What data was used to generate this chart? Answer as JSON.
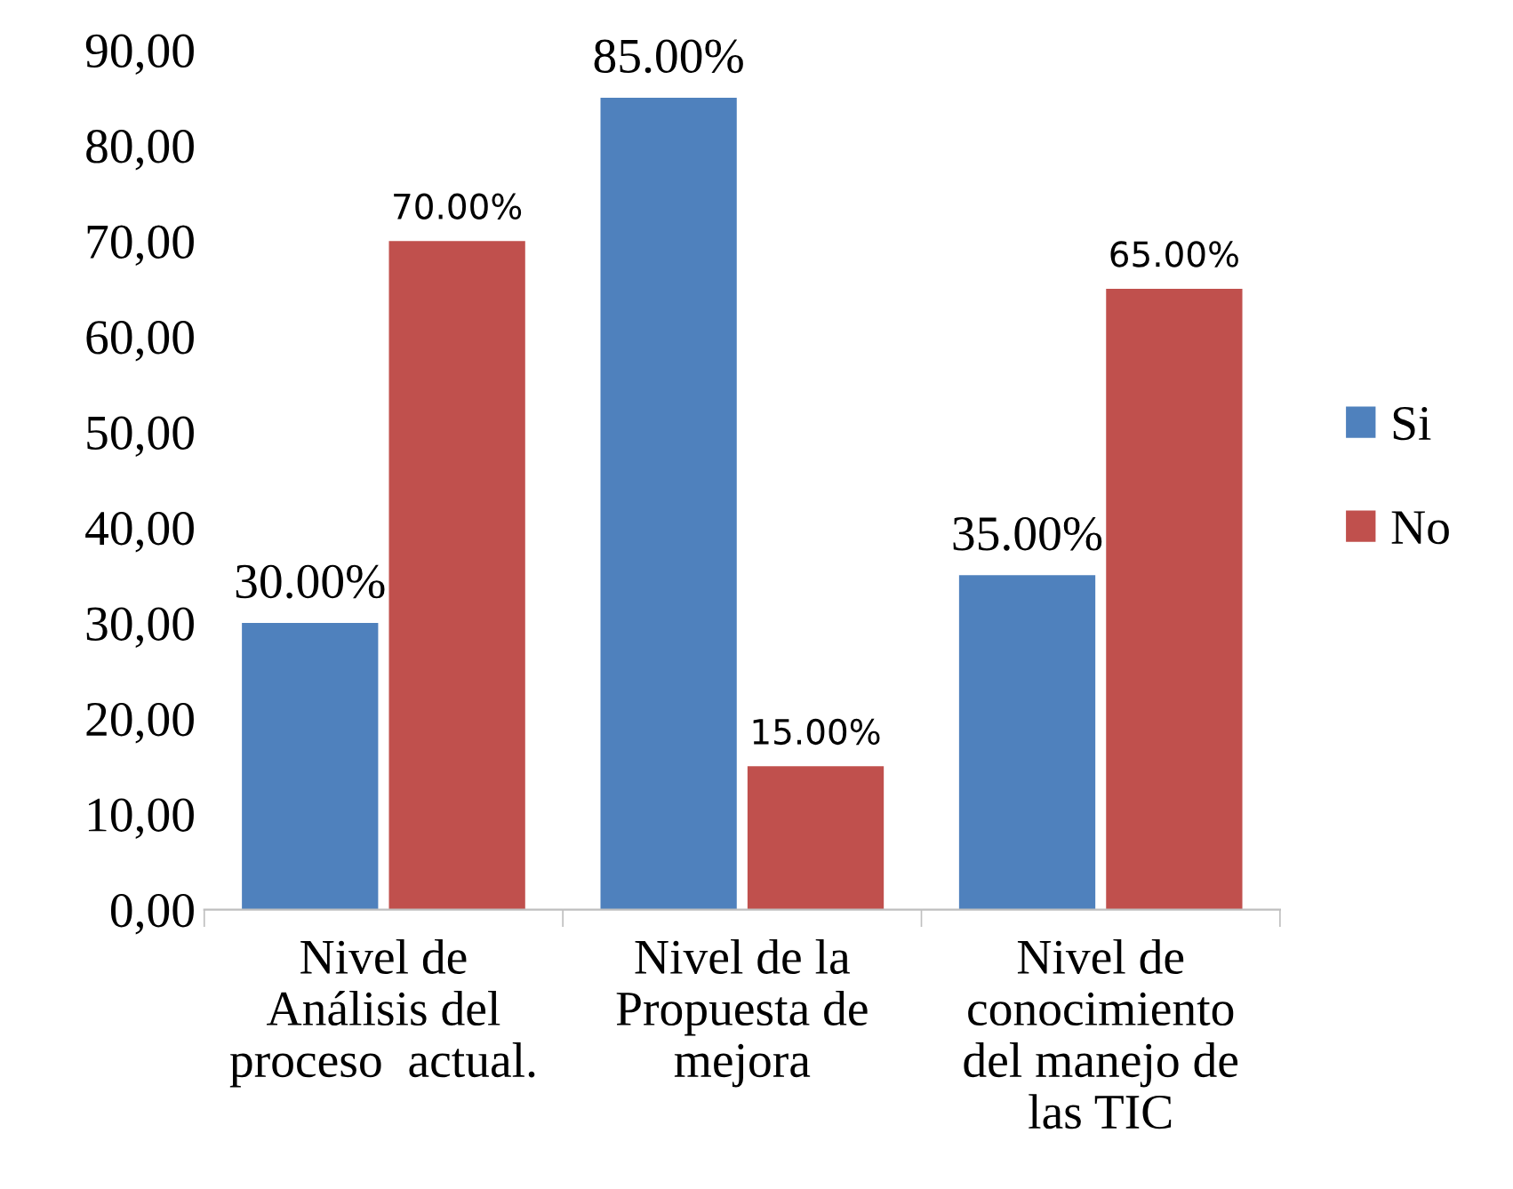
{
  "chart_data": {
    "type": "bar",
    "categories": [
      "Nivel de\nAnálisis del\nproceso  actual.",
      "Nivel de la\nPropuesta de\nmejora",
      "Nivel de\nconocimiento\ndel manejo de\nlas TIC"
    ],
    "series": [
      {
        "name": "Si",
        "color": "#4f81bd",
        "values": [
          30,
          85,
          35
        ],
        "value_labels": [
          "30.00%",
          "85.00%",
          "35.00%"
        ]
      },
      {
        "name": "No",
        "color": "#c0504d",
        "values": [
          70,
          15,
          65
        ],
        "value_labels": [
          "70.00%",
          "15.00%",
          "65.00%"
        ]
      }
    ],
    "ylim": [
      0,
      90
    ],
    "yticks": [
      {
        "value": 0,
        "label": "0,00"
      },
      {
        "value": 10,
        "label": "10,00"
      },
      {
        "value": 20,
        "label": "20,00"
      },
      {
        "value": 30,
        "label": "30,00"
      },
      {
        "value": 40,
        "label": "40,00"
      },
      {
        "value": 50,
        "label": "50,00"
      },
      {
        "value": 60,
        "label": "60,00"
      },
      {
        "value": 70,
        "label": "70,00"
      },
      {
        "value": 80,
        "label": "80,00"
      },
      {
        "value": 90,
        "label": "90,00"
      }
    ],
    "grid": false,
    "legend": "right"
  }
}
